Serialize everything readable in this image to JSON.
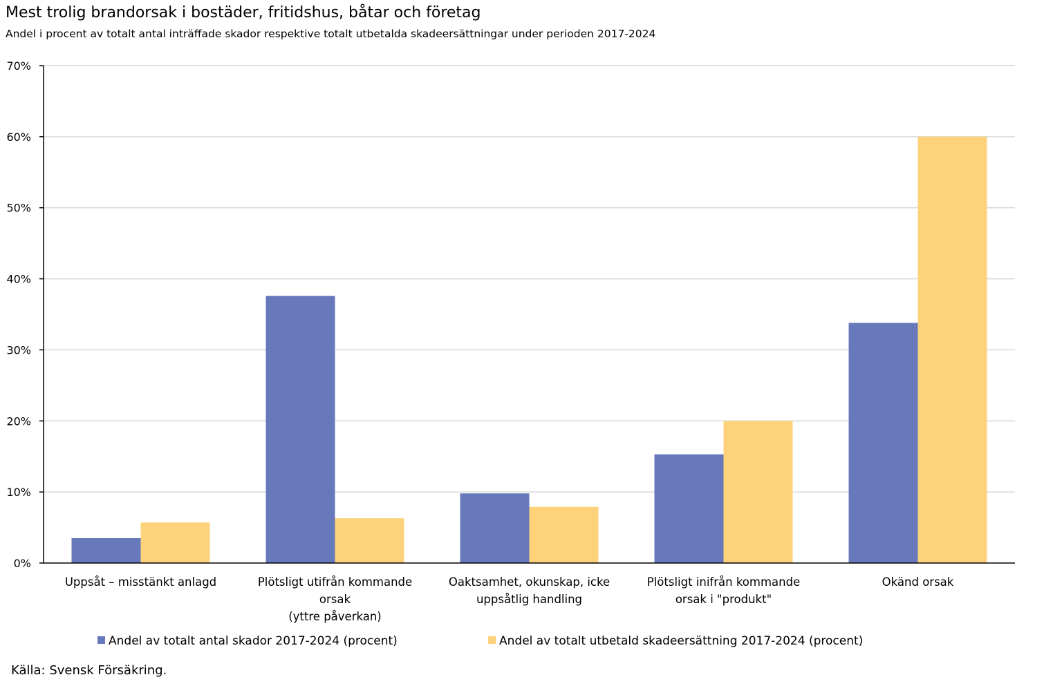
{
  "chart_data": {
    "type": "bar",
    "title": "Mest trolig brandorsak i bostäder, fritidshus, båtar och företag",
    "subtitle": "Andel i procent av totalt antal inträffade skador respektive totalt utbetalda skadeersättningar under perioden 2017-2024",
    "categories": [
      [
        "Uppsåt – misstänkt anlagd"
      ],
      [
        "Plötsligt utifrån kommande",
        "orsak",
        "(yttre påverkan)"
      ],
      [
        "Oaktsamhet, okunskap, icke",
        "uppsåtlig handling"
      ],
      [
        "Plötsligt inifrån kommande",
        "orsak i \"produkt\""
      ],
      [
        "Okänd orsak"
      ]
    ],
    "series": [
      {
        "name": "Andel av totalt antal skador 2017-2024 (procent)",
        "color": "#6779bb",
        "values": [
          3.5,
          37.6,
          9.8,
          15.3,
          33.8
        ]
      },
      {
        "name": "Andel av totalt utbetald skadeersättning 2017-2024 (procent)",
        "color": "#fed27a",
        "values": [
          5.7,
          6.3,
          7.9,
          20.0,
          60.0
        ]
      }
    ],
    "ylim": [
      0,
      70
    ],
    "yticks": [
      "0%",
      "10%",
      "20%",
      "30%",
      "40%",
      "50%",
      "60%",
      "70%"
    ],
    "grid": true,
    "legend": "bottom",
    "source": "Källa: Svensk Försäkring."
  }
}
